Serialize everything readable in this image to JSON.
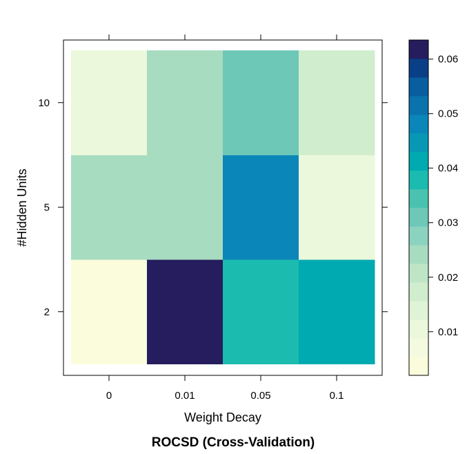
{
  "chart_data": {
    "type": "heatmap",
    "title": "ROCSD (Cross-Validation)",
    "xlabel": "Weight Decay",
    "ylabel": "#Hidden Units",
    "x_categories": [
      "0",
      "0.01",
      "0.05",
      "0.1"
    ],
    "y_categories": [
      "2",
      "5",
      "10"
    ],
    "values": [
      [
        0.003,
        0.063,
        0.037,
        0.041
      ],
      [
        0.023,
        0.023,
        0.049,
        0.009
      ],
      [
        0.009,
        0.023,
        0.031,
        0.019
      ]
    ],
    "colorbar": {
      "ticks": [
        "0.01",
        "0.02",
        "0.03",
        "0.04",
        "0.05",
        "0.06"
      ],
      "tick_values": [
        0.01,
        0.02,
        0.03,
        0.04,
        0.05,
        0.06
      ],
      "range": [
        0.002,
        0.0635
      ],
      "bin_colors": [
        "#FAFCDC",
        "#F4FADF",
        "#EBF8DB",
        "#DFF3D6",
        "#D0EDCE",
        "#BEE6C6",
        "#A7DCC0",
        "#8CD3BF",
        "#6DC8B8",
        "#49C3B0",
        "#1CBBAF",
        "#00AAB1",
        "#0898B6",
        "#0A86B8",
        "#0A73AC",
        "#095EA0",
        "#083F86",
        "#251D5E"
      ]
    },
    "grid": false,
    "legend_position": "right"
  }
}
